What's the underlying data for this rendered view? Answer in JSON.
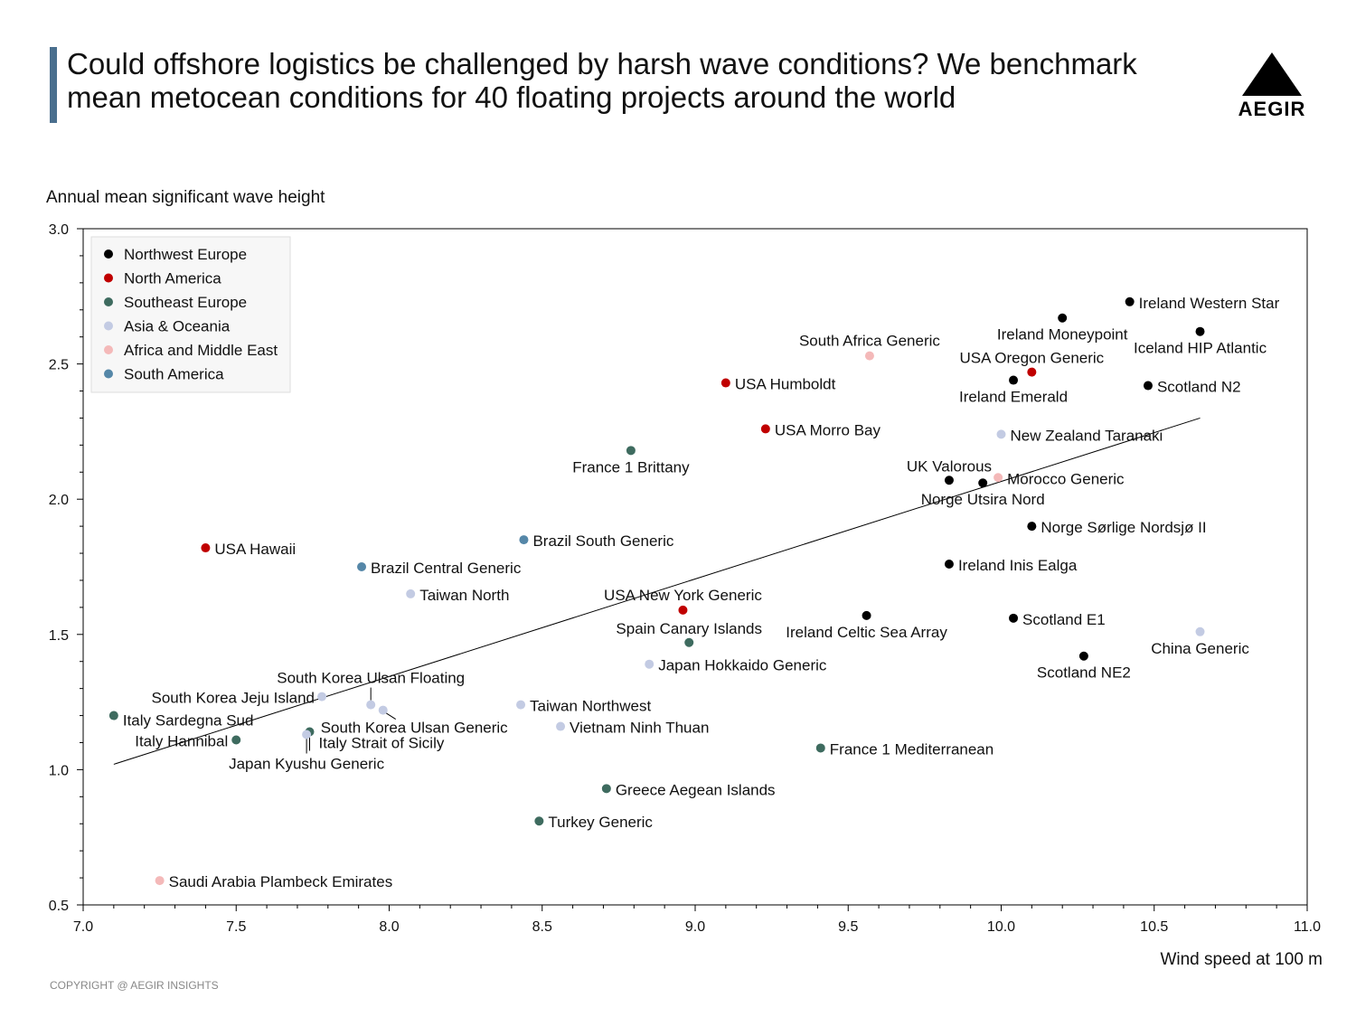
{
  "header": {
    "title": "Could offshore logistics be challenged by harsh wave conditions? We benchmark mean metocean conditions for 40 floating projects around the world",
    "logo_text": "AEGIR",
    "copyright": "COPYRIGHT @ AEGIR INSIGHTS"
  },
  "chart_data": {
    "type": "scatter",
    "title": "",
    "xlabel": "Wind speed at 100 m",
    "ylabel": "Annual mean significant wave height",
    "xlim": [
      7.0,
      11.0
    ],
    "ylim": [
      0.5,
      3.0
    ],
    "xticks": [
      "7.0",
      "7.5",
      "8.0",
      "8.5",
      "9.0",
      "9.5",
      "10.0",
      "10.5",
      "11.0"
    ],
    "yticks": [
      "0.5",
      "1.0",
      "1.5",
      "2.0",
      "2.5",
      "3.0"
    ],
    "legend_position": "top-left",
    "series": [
      {
        "name": "Northwest Europe",
        "color": "#000000"
      },
      {
        "name": "North America",
        "color": "#c00000"
      },
      {
        "name": "Southeast Europe",
        "color": "#3e6b5f"
      },
      {
        "name": "Asia & Oceania",
        "color": "#c3cbe3"
      },
      {
        "name": "Africa and Middle East",
        "color": "#f4b9b9"
      },
      {
        "name": "South America",
        "color": "#5587a8"
      }
    ],
    "trendline": {
      "x": [
        7.1,
        10.65
      ],
      "y": [
        1.02,
        2.3
      ]
    },
    "points": [
      {
        "label": "Ireland Western Star",
        "region": "Northwest Europe",
        "x": 10.42,
        "y": 2.73
      },
      {
        "label": "Ireland Moneypoint",
        "region": "Northwest Europe",
        "x": 10.2,
        "y": 2.67
      },
      {
        "label": "Iceland HIP Atlantic",
        "region": "Northwest Europe",
        "x": 10.65,
        "y": 2.62
      },
      {
        "label": "Ireland Emerald",
        "region": "Northwest Europe",
        "x": 10.04,
        "y": 2.44
      },
      {
        "label": "Scotland N2",
        "region": "Northwest Europe",
        "x": 10.48,
        "y": 2.42
      },
      {
        "label": "UK Valorous",
        "region": "Northwest Europe",
        "x": 9.83,
        "y": 2.07
      },
      {
        "label": "Norge Utsira Nord",
        "region": "Northwest Europe",
        "x": 9.94,
        "y": 2.06
      },
      {
        "label": "Norge Sørlige Nordsjø II",
        "region": "Northwest Europe",
        "x": 10.1,
        "y": 1.9
      },
      {
        "label": "Ireland Inis Ealga",
        "region": "Northwest Europe",
        "x": 9.83,
        "y": 1.76
      },
      {
        "label": "Ireland Celtic Sea Array",
        "region": "Northwest Europe",
        "x": 9.56,
        "y": 1.57
      },
      {
        "label": "Scotland E1",
        "region": "Northwest Europe",
        "x": 10.04,
        "y": 1.56
      },
      {
        "label": "Scotland NE2",
        "region": "Northwest Europe",
        "x": 10.27,
        "y": 1.42
      },
      {
        "label": "USA Oregon Generic",
        "region": "North America",
        "x": 10.1,
        "y": 2.47
      },
      {
        "label": "USA Humboldt",
        "region": "North America",
        "x": 9.1,
        "y": 2.43
      },
      {
        "label": "USA Morro Bay",
        "region": "North America",
        "x": 9.23,
        "y": 2.26
      },
      {
        "label": "USA Hawaii",
        "region": "North America",
        "x": 7.4,
        "y": 1.82
      },
      {
        "label": "USA New York Generic",
        "region": "North America",
        "x": 8.96,
        "y": 1.59
      },
      {
        "label": "France 1 Brittany",
        "region": "Southeast Europe",
        "x": 8.79,
        "y": 2.18
      },
      {
        "label": "Spain Canary Islands",
        "region": "Southeast Europe",
        "x": 8.98,
        "y": 1.47
      },
      {
        "label": "Italy Sardegna Sud",
        "region": "Southeast Europe",
        "x": 7.1,
        "y": 1.2
      },
      {
        "label": "Italy Hannibal",
        "region": "Southeast Europe",
        "x": 7.5,
        "y": 1.11
      },
      {
        "label": "France 1 Mediterranean",
        "region": "Southeast Europe",
        "x": 9.41,
        "y": 1.08
      },
      {
        "label": "Greece Aegean Islands",
        "region": "Southeast Europe",
        "x": 8.71,
        "y": 0.93
      },
      {
        "label": "Turkey Generic",
        "region": "Southeast Europe",
        "x": 8.49,
        "y": 0.81
      },
      {
        "label": "Italy Strait of Sicily",
        "region": "Southeast Europe",
        "x": 7.74,
        "y": 1.14
      },
      {
        "label": "New Zealand Taranaki",
        "region": "Asia & Oceania",
        "x": 10.0,
        "y": 2.24
      },
      {
        "label": "Taiwan North",
        "region": "Asia & Oceania",
        "x": 8.07,
        "y": 1.65
      },
      {
        "label": "Japan Hokkaido Generic",
        "region": "Asia & Oceania",
        "x": 8.85,
        "y": 1.39
      },
      {
        "label": "China Generic",
        "region": "Asia & Oceania",
        "x": 10.65,
        "y": 1.51
      },
      {
        "label": "South Korea Jeju Island",
        "region": "Asia & Oceania",
        "x": 7.78,
        "y": 1.27
      },
      {
        "label": "South Korea Ulsan Floating",
        "region": "Asia & Oceania",
        "x": 7.94,
        "y": 1.24
      },
      {
        "label": "South Korea Ulsan Generic",
        "region": "Asia & Oceania",
        "x": 7.98,
        "y": 1.22
      },
      {
        "label": "Japan Kyushu Generic",
        "region": "Asia & Oceania",
        "x": 7.73,
        "y": 1.13
      },
      {
        "label": "Taiwan Northwest",
        "region": "Asia & Oceania",
        "x": 8.43,
        "y": 1.24
      },
      {
        "label": "Vietnam Ninh Thuan",
        "region": "Asia & Oceania",
        "x": 8.56,
        "y": 1.16
      },
      {
        "label": "South Africa Generic",
        "region": "Africa and Middle East",
        "x": 9.57,
        "y": 2.53
      },
      {
        "label": "Morocco Generic",
        "region": "Africa and Middle East",
        "x": 9.99,
        "y": 2.08
      },
      {
        "label": "Saudi Arabia Plambeck Emirates",
        "region": "Africa and Middle East",
        "x": 7.25,
        "y": 0.59
      },
      {
        "label": "Brazil South Generic",
        "region": "South America",
        "x": 8.44,
        "y": 1.85
      },
      {
        "label": "Brazil Central Generic",
        "region": "South America",
        "x": 7.91,
        "y": 1.75
      }
    ]
  }
}
